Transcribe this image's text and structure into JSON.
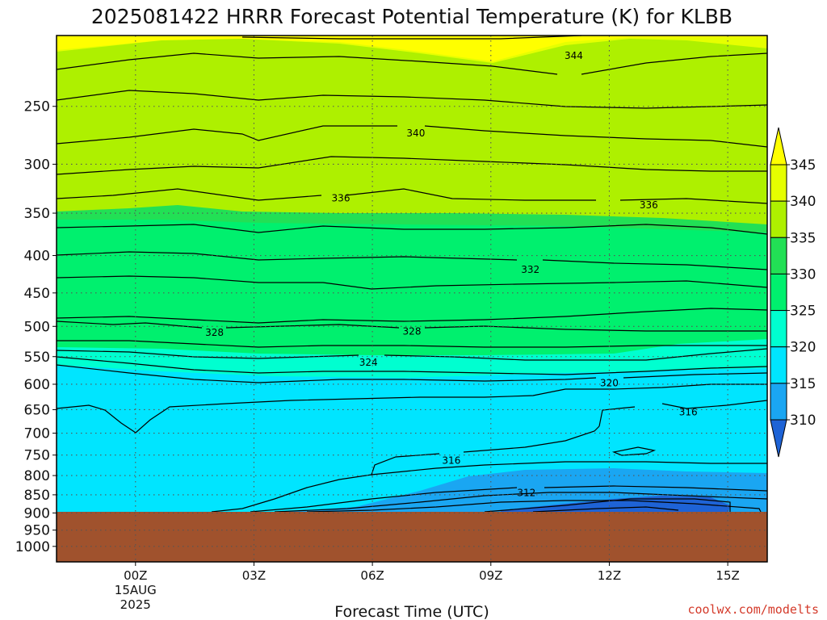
{
  "chart_data": {
    "type": "heatmap",
    "title": "2025081422 HRRR Forecast Potential Temperature (K) for KLBB",
    "xlabel": "Forecast Time (UTC)",
    "ylabel": "",
    "credit": "coolwx.com/modelts",
    "x_range_hours": [
      -2,
      16
    ],
    "y_range_hpa": [
      200,
      1050
    ],
    "y_scale": "log-pressure",
    "x_ticks": [
      {
        "hour": 0,
        "label": "00Z",
        "date": "15AUG",
        "year": "2025"
      },
      {
        "hour": 3,
        "label": "03Z"
      },
      {
        "hour": 6,
        "label": "06Z"
      },
      {
        "hour": 9,
        "label": "09Z"
      },
      {
        "hour": 12,
        "label": "12Z"
      },
      {
        "hour": 15,
        "label": "15Z"
      }
    ],
    "y_ticks": [
      250,
      300,
      350,
      400,
      450,
      500,
      550,
      600,
      650,
      700,
      750,
      800,
      850,
      900,
      950,
      1000
    ],
    "grid": true,
    "colorbar": {
      "levels": [
        310,
        315,
        320,
        325,
        330,
        335,
        340,
        345
      ],
      "labels": [
        "345",
        "340",
        "335",
        "330",
        "325",
        "320",
        "315",
        "310"
      ],
      "colors": [
        "#1e63d6",
        "#1aa6f2",
        "#00e5ff",
        "#00ffd0",
        "#00f06e",
        "#22e055",
        "#aef000",
        "#e6ff00",
        "#ffff00"
      ],
      "placement": "right"
    },
    "ground_color": "#a0522d",
    "ground_level_hpa": 898,
    "contour_interval_k": 2,
    "contour_labels": [
      {
        "value": "344",
        "hour": 11.1,
        "hpa": 213
      },
      {
        "value": "340",
        "hour": 7.1,
        "hpa": 272
      },
      {
        "value": "336",
        "hour": 5.2,
        "hpa": 334
      },
      {
        "value": "336",
        "hour": 13.0,
        "hpa": 341
      },
      {
        "value": "332",
        "hour": 10.0,
        "hpa": 418
      },
      {
        "value": "328",
        "hour": 2.0,
        "hpa": 510
      },
      {
        "value": "328",
        "hour": 7.0,
        "hpa": 508
      },
      {
        "value": "324",
        "hour": 5.9,
        "hpa": 560
      },
      {
        "value": "320",
        "hour": 12.0,
        "hpa": 598
      },
      {
        "value": "316",
        "hour": 14.0,
        "hpa": 655
      },
      {
        "value": "316",
        "hour": 8.0,
        "hpa": 763
      },
      {
        "value": "312",
        "hour": 9.9,
        "hpa": 845
      }
    ]
  }
}
